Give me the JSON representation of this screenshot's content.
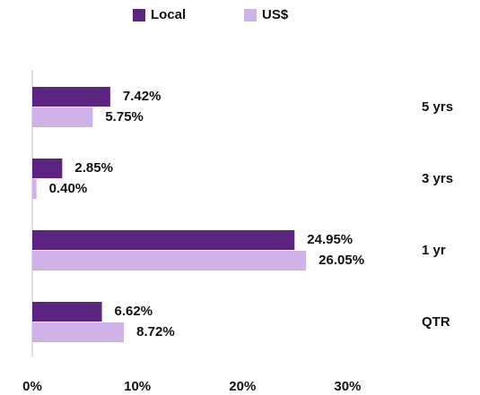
{
  "chart_data": {
    "type": "hbar",
    "categories": [
      "5 yrs",
      "3 yrs",
      "1 yr",
      "QTR"
    ],
    "series": [
      {
        "name": "Local",
        "color": "#5b2480",
        "values": [
          7.42,
          2.85,
          24.95,
          6.62
        ],
        "value_labels": [
          "7.42%",
          "2.85%",
          "24.95%",
          "6.62%"
        ]
      },
      {
        "name": "US$",
        "color": "#cfb3e8",
        "values": [
          5.75,
          0.4,
          26.05,
          8.72
        ],
        "value_labels": [
          "5.75%",
          "0.40%",
          "26.05%",
          "8.72%"
        ]
      }
    ],
    "xlim": [
      0,
      35
    ],
    "xticks": [
      {
        "value": 0,
        "label": "0%"
      },
      {
        "value": 10,
        "label": "10%"
      },
      {
        "value": 20,
        "label": "20%"
      },
      {
        "value": 30,
        "label": "30%"
      }
    ],
    "legend": "top"
  }
}
